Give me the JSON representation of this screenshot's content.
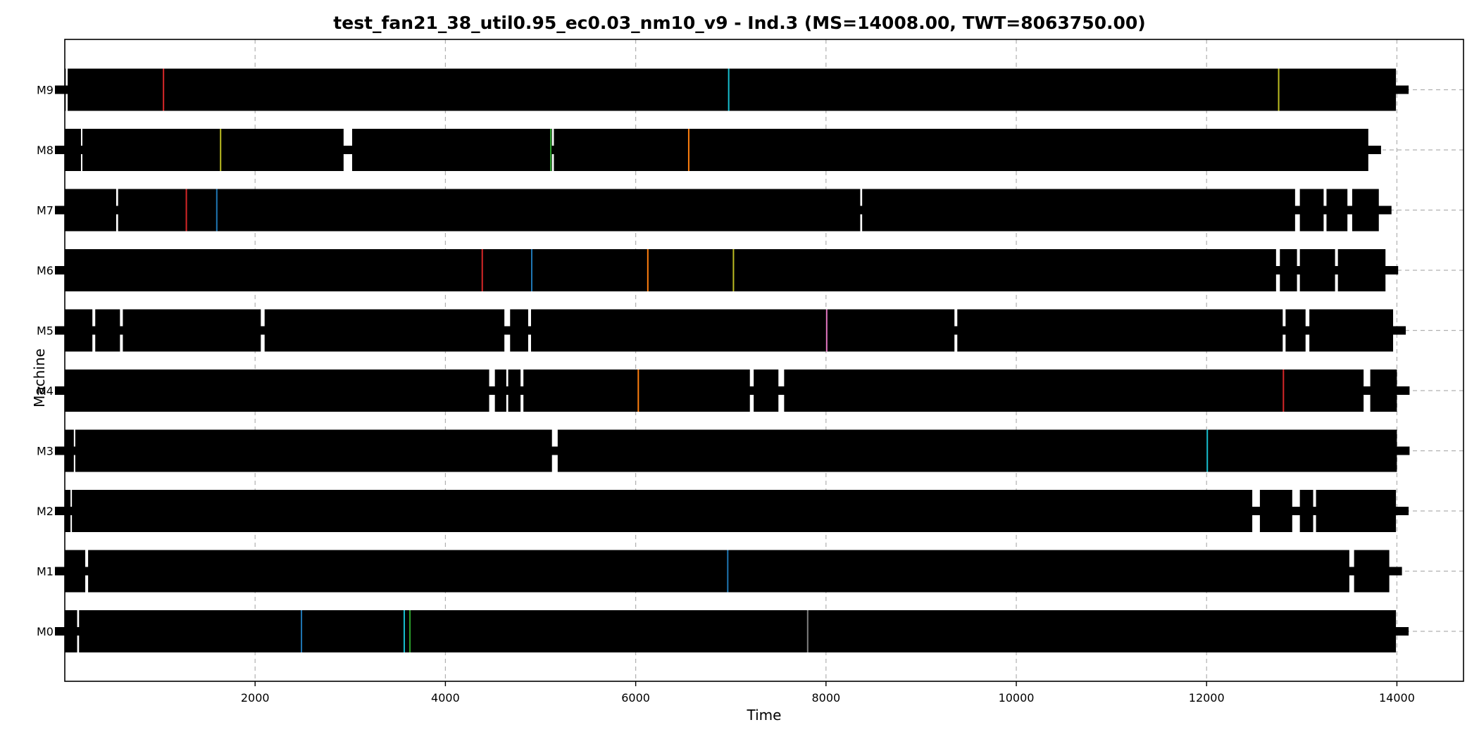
{
  "chart_data": {
    "type": "gantt",
    "title": "test_fan21_38_util0.95_ec0.03_nm10_v9 - Ind.3 (MS=14008.00, TWT=8063750.00)",
    "xlabel": "Time",
    "ylabel": "Machine",
    "xlim": [
      0,
      14700
    ],
    "x_ticks": [
      2000,
      4000,
      6000,
      8000,
      10000,
      12000,
      14000
    ],
    "x_tick_labels": [
      "2000",
      "4000",
      "6000",
      "8000",
      "10000",
      "12000",
      "14000"
    ],
    "grid": true,
    "machines": [
      {
        "label": "M0",
        "end": 13990,
        "idle": [
          [
            130,
            150
          ]
        ],
        "accents": [
          {
            "x": 2480,
            "color": "#1f77b4"
          },
          {
            "x": 3560,
            "color": "#17becf"
          },
          {
            "x": 3620,
            "color": "#2ca02c"
          },
          {
            "x": 7800,
            "color": "#7f7f7f"
          }
        ]
      },
      {
        "label": "M1",
        "end": 13920,
        "idle": [
          [
            215,
            245
          ],
          [
            13500,
            13550
          ]
        ],
        "accents": [
          {
            "x": 6960,
            "color": "#1f77b4"
          }
        ]
      },
      {
        "label": "M2",
        "end": 13990,
        "idle": [
          [
            60,
            75
          ],
          [
            12480,
            12560
          ],
          [
            12900,
            12980
          ],
          [
            13120,
            13150
          ]
        ],
        "accents": []
      },
      {
        "label": "M3",
        "end": 14000,
        "idle": [
          [
            95,
            110
          ],
          [
            5120,
            5180
          ]
        ],
        "accents": [
          {
            "x": 12000,
            "color": "#17becf"
          }
        ]
      },
      {
        "label": "M4",
        "end": 14000,
        "idle": [
          [
            4460,
            4520
          ],
          [
            4640,
            4660
          ],
          [
            4790,
            4820
          ],
          [
            7200,
            7240
          ],
          [
            7500,
            7560
          ],
          [
            13650,
            13720
          ]
        ],
        "accents": [
          {
            "x": 6020,
            "color": "#ff7f0e"
          },
          {
            "x": 12800,
            "color": "#d62728"
          }
        ]
      },
      {
        "label": "M5",
        "end": 13960,
        "idle": [
          [
            290,
            320
          ],
          [
            580,
            610
          ],
          [
            2060,
            2100
          ],
          [
            4620,
            4680
          ],
          [
            4870,
            4900
          ],
          [
            9350,
            9380
          ],
          [
            12800,
            12830
          ],
          [
            13040,
            13080
          ]
        ],
        "accents": [
          {
            "x": 8000,
            "color": "#e377c2"
          }
        ]
      },
      {
        "label": "M6",
        "end": 13880,
        "idle": [
          [
            12730,
            12770
          ],
          [
            12950,
            12980
          ],
          [
            13350,
            13380
          ]
        ],
        "accents": [
          {
            "x": 4380,
            "color": "#d62728"
          },
          {
            "x": 4900,
            "color": "#1f77b4"
          },
          {
            "x": 6120,
            "color": "#ff7f0e"
          },
          {
            "x": 7020,
            "color": "#bcbd22"
          }
        ]
      },
      {
        "label": "M7",
        "end": 13810,
        "idle": [
          [
            540,
            560
          ],
          [
            8360,
            8380
          ],
          [
            12930,
            12980
          ],
          [
            13230,
            13260
          ],
          [
            13480,
            13530
          ]
        ],
        "accents": [
          {
            "x": 1270,
            "color": "#d62728"
          },
          {
            "x": 1590,
            "color": "#1f77b4"
          }
        ]
      },
      {
        "label": "M8",
        "end": 13700,
        "idle": [
          [
            170,
            180
          ],
          [
            2930,
            3020
          ],
          [
            5120,
            5140
          ],
          [
            13700,
            13850
          ]
        ],
        "accents": [
          {
            "x": 5100,
            "color": "#2ca02c"
          },
          {
            "x": 6550,
            "color": "#ff7f0e"
          },
          {
            "x": 1630,
            "color": "#bcbd22"
          }
        ]
      },
      {
        "label": "M9",
        "end": 13990,
        "idle": [
          [
            10,
            30
          ]
        ],
        "accents": [
          {
            "x": 1030,
            "color": "#d62728"
          },
          {
            "x": 6970,
            "color": "#17becf"
          },
          {
            "x": 12750,
            "color": "#bcbd22"
          }
        ]
      }
    ]
  }
}
